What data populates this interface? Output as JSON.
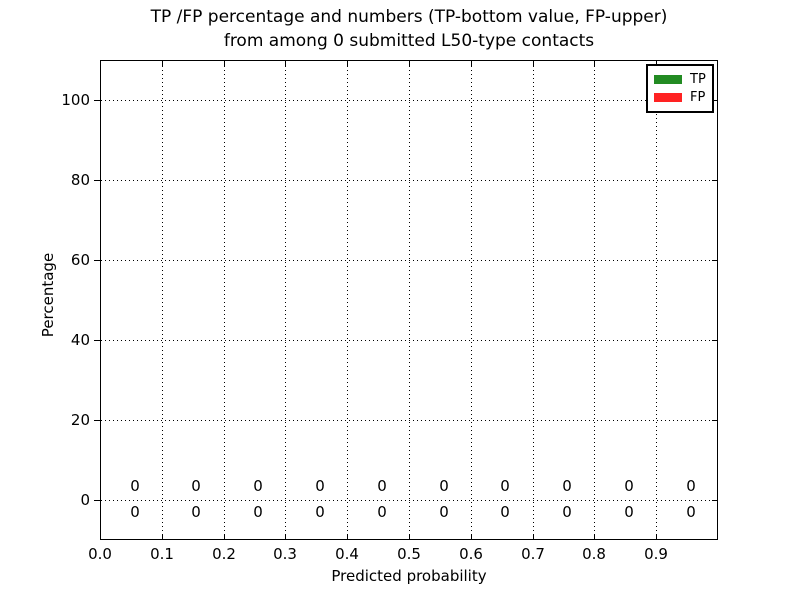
{
  "chart_data": {
    "type": "bar",
    "title_line1": "TP /FP percentage and numbers (TP-bottom value, FP-upper)",
    "title_line2": "from among 0 submitted L50-type contacts",
    "xlabel": "Predicted probability",
    "ylabel": "Percentage",
    "xlim": [
      0.0,
      1.0
    ],
    "ylim": [
      -10,
      110
    ],
    "grid": true,
    "grid_style": "dotted",
    "xticks": {
      "values": [
        0.0,
        0.1,
        0.2,
        0.3,
        0.4,
        0.5,
        0.6,
        0.7,
        0.8,
        0.9
      ],
      "labels": [
        "0.0",
        "0.1",
        "0.2",
        "0.3",
        "0.4",
        "0.5",
        "0.6",
        "0.7",
        "0.8",
        "0.9"
      ]
    },
    "yticks": {
      "values": [
        0,
        20,
        40,
        60,
        80,
        100
      ],
      "labels": [
        "0",
        "20",
        "40",
        "60",
        "80",
        "100"
      ]
    },
    "bin_centers": [
      0.056,
      0.156,
      0.256,
      0.356,
      0.456,
      0.556,
      0.656,
      0.756,
      0.856,
      0.956
    ],
    "series": [
      {
        "name": "TP",
        "color": "#228b22",
        "values": [
          0,
          0,
          0,
          0,
          0,
          0,
          0,
          0,
          0,
          0
        ],
        "count_labels": [
          "0",
          "0",
          "0",
          "0",
          "0",
          "0",
          "0",
          "0",
          "0",
          "0"
        ],
        "count_row": "bottom"
      },
      {
        "name": "FP",
        "color": "#ff2222",
        "values": [
          0,
          0,
          0,
          0,
          0,
          0,
          0,
          0,
          0,
          0
        ],
        "count_labels": [
          "0",
          "0",
          "0",
          "0",
          "0",
          "0",
          "0",
          "0",
          "0",
          "0"
        ],
        "count_row": "top"
      }
    ],
    "legend": {
      "position": "upper right",
      "items": [
        {
          "label": "TP",
          "color": "#228b22"
        },
        {
          "label": "FP",
          "color": "#ff2222"
        }
      ]
    }
  }
}
